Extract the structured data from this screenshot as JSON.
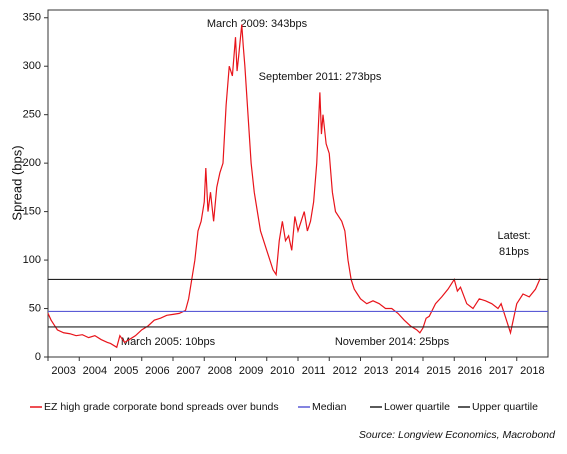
{
  "chart_data": {
    "type": "line",
    "y_label": "Spread (bps)",
    "xlim": [
      2003,
      2019
    ],
    "ylim": [
      0,
      358
    ],
    "xticks": [
      2003,
      2004,
      2005,
      2006,
      2007,
      2008,
      2009,
      2010,
      2011,
      2012,
      2013,
      2014,
      2015,
      2016,
      2017,
      2018
    ],
    "yticks": [
      0,
      50,
      100,
      150,
      200,
      250,
      300,
      350
    ],
    "x": [
      2003.0,
      2003.1,
      2003.2,
      2003.3,
      2003.5,
      2003.7,
      2003.9,
      2004.1,
      2004.3,
      2004.5,
      2004.7,
      2004.9,
      2005.0,
      2005.2,
      2005.3,
      2005.45,
      2005.6,
      2005.8,
      2006.0,
      2006.2,
      2006.4,
      2006.6,
      2006.8,
      2007.0,
      2007.2,
      2007.4,
      2007.5,
      2007.6,
      2007.7,
      2007.8,
      2007.9,
      2008.0,
      2008.05,
      2008.12,
      2008.2,
      2008.3,
      2008.4,
      2008.5,
      2008.6,
      2008.7,
      2008.8,
      2008.9,
      2009.0,
      2009.05,
      2009.1,
      2009.2,
      2009.25,
      2009.3,
      2009.4,
      2009.5,
      2009.6,
      2009.7,
      2009.8,
      2009.9,
      2010.0,
      2010.1,
      2010.2,
      2010.3,
      2010.4,
      2010.5,
      2010.6,
      2010.7,
      2010.8,
      2010.9,
      2011.0,
      2011.1,
      2011.2,
      2011.3,
      2011.4,
      2011.5,
      2011.6,
      2011.7,
      2011.75,
      2011.8,
      2011.9,
      2012.0,
      2012.1,
      2012.2,
      2012.3,
      2012.4,
      2012.5,
      2012.6,
      2012.7,
      2012.8,
      2012.9,
      2013.0,
      2013.2,
      2013.4,
      2013.6,
      2013.8,
      2014.0,
      2014.2,
      2014.4,
      2014.6,
      2014.8,
      2014.9,
      2015.0,
      2015.1,
      2015.2,
      2015.4,
      2015.6,
      2015.8,
      2015.9,
      2016.0,
      2016.1,
      2016.2,
      2016.4,
      2016.6,
      2016.8,
      2017.0,
      2017.2,
      2017.4,
      2017.5,
      2017.7,
      2017.8,
      2017.9,
      2018.0,
      2018.2,
      2018.4,
      2018.6,
      2018.75
    ],
    "series": [
      {
        "name": "EZ high grade corporate bond spreads over bunds",
        "color": "#e8141b",
        "values": [
          45,
          38,
          33,
          28,
          25,
          24,
          22,
          23,
          20,
          22,
          18,
          15,
          14,
          10,
          22,
          15,
          18,
          22,
          28,
          32,
          38,
          40,
          43,
          44,
          45,
          48,
          60,
          80,
          100,
          130,
          140,
          160,
          195,
          150,
          170,
          140,
          175,
          190,
          200,
          260,
          300,
          290,
          330,
          295,
          310,
          343,
          320,
          300,
          250,
          200,
          170,
          150,
          130,
          120,
          110,
          100,
          90,
          85,
          120,
          140,
          120,
          125,
          110,
          145,
          130,
          140,
          150,
          130,
          140,
          160,
          200,
          273,
          230,
          250,
          220,
          210,
          170,
          150,
          145,
          140,
          130,
          100,
          80,
          70,
          65,
          60,
          55,
          58,
          55,
          50,
          50,
          45,
          38,
          32,
          28,
          25,
          30,
          40,
          42,
          55,
          62,
          70,
          75,
          80,
          68,
          72,
          55,
          50,
          60,
          58,
          55,
          50,
          55,
          35,
          25,
          40,
          55,
          65,
          62,
          70,
          81
        ]
      },
      {
        "name": "Median",
        "color": "#5b5bd6",
        "value": 47
      },
      {
        "name": "Lower quartile",
        "color": "#222222",
        "value": 31
      },
      {
        "name": "Upper quartile",
        "color": "#222222",
        "value": 80
      }
    ],
    "annotations": [
      "March 2009: 343bps",
      "September 2011: 273bps",
      "March 2005: 10bps",
      "November 2014: 25bps",
      "Latest:",
      "81bps"
    ],
    "source": "Source: Longview Economics, Macrobond"
  }
}
